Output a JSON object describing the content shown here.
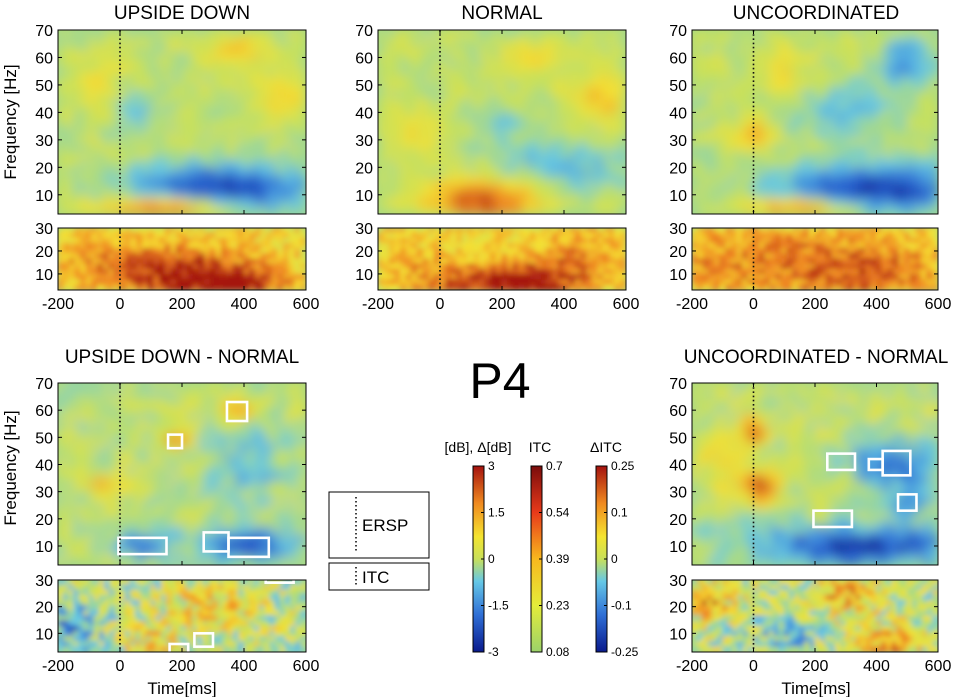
{
  "chart_data": {
    "type": "heatmap",
    "channel_label": "P4",
    "legend_labels": {
      "ersp": "ERSP",
      "itc": "ITC"
    },
    "y_label": "Frequency [Hz]",
    "x_label": "Time[ms]",
    "x_ticks": [
      "-200",
      "0",
      "200",
      "400",
      "600"
    ],
    "ersp_y_ticks": [
      "70",
      "60",
      "50",
      "40",
      "30",
      "20",
      "10"
    ],
    "itc_y_ticks": [
      "30",
      "20",
      "10"
    ],
    "panels": [
      {
        "title": "UPSIDE DOWN",
        "kind": "condition",
        "variant": 1,
        "xlim": [
          -200,
          600
        ],
        "ersp_ylim": [
          3,
          70
        ],
        "itc_ylim": [
          3,
          30
        ],
        "ersp_boxes": [],
        "itc_boxes": []
      },
      {
        "title": "NORMAL",
        "kind": "condition",
        "variant": 2,
        "xlim": [
          -200,
          600
        ],
        "ersp_ylim": [
          3,
          70
        ],
        "itc_ylim": [
          3,
          30
        ],
        "ersp_boxes": [],
        "itc_boxes": []
      },
      {
        "title": "UNCOORDINATED",
        "kind": "condition",
        "variant": 3,
        "xlim": [
          -200,
          600
        ],
        "ersp_ylim": [
          3,
          70
        ],
        "itc_ylim": [
          3,
          30
        ],
        "ersp_boxes": [],
        "itc_boxes": []
      },
      {
        "title": "UPSIDE DOWN - NORMAL",
        "kind": "difference",
        "variant": 4,
        "xlim": [
          -200,
          600
        ],
        "ersp_ylim": [
          3,
          70
        ],
        "itc_ylim": [
          3,
          30
        ],
        "ersp_boxes": [
          [
            155,
            200,
            46,
            51
          ],
          [
            345,
            410,
            56,
            63
          ],
          [
            -5,
            150,
            7,
            13
          ],
          [
            270,
            350,
            8,
            15
          ],
          [
            350,
            480,
            6,
            13
          ]
        ],
        "itc_boxes": [
          [
            160,
            220,
            2,
            6
          ],
          [
            240,
            300,
            5,
            10
          ],
          [
            470,
            560,
            29,
            32
          ]
        ]
      },
      {
        "title": "UNCOORDINATED - NORMAL",
        "kind": "difference",
        "variant": 5,
        "xlim": [
          -200,
          600
        ],
        "ersp_ylim": [
          3,
          70
        ],
        "itc_ylim": [
          3,
          30
        ],
        "ersp_boxes": [
          [
            240,
            330,
            38,
            44
          ],
          [
            375,
            420,
            38,
            42
          ],
          [
            420,
            510,
            36,
            45
          ],
          [
            470,
            530,
            23,
            29
          ],
          [
            195,
            320,
            17,
            23
          ]
        ],
        "itc_boxes": []
      }
    ],
    "colorbars": [
      {
        "title": "[dB], Δ[dB]",
        "colormap": "jet",
        "ticks": [
          "3",
          "1.5",
          "0",
          "-1.5",
          "-3"
        ],
        "range": [
          -3,
          3
        ]
      },
      {
        "title": "ITC",
        "colormap": "hot",
        "ticks": [
          "0.7",
          "0.54",
          "0.39",
          "0.23",
          "0.08"
        ],
        "range": [
          0.08,
          0.7
        ]
      },
      {
        "title": "ΔITC",
        "colormap": "jet",
        "ticks": [
          "0.25",
          "0.1",
          "0",
          "-0.1",
          "-0.25"
        ],
        "range": [
          -0.25,
          0.25
        ]
      }
    ]
  }
}
